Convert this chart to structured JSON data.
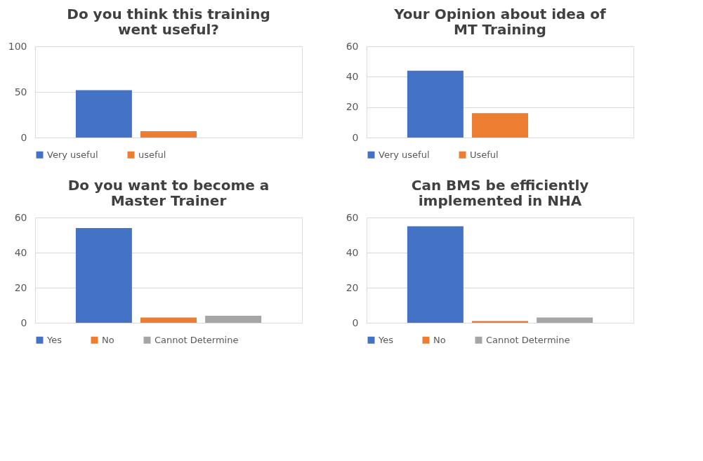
{
  "chart_data": [
    {
      "type": "bar",
      "title": "Do you think this training went useful?",
      "categories": [
        null
      ],
      "series": [
        {
          "name": "Very useful",
          "color": "#4472c4",
          "values": [
            52
          ]
        },
        {
          "name": "useful",
          "color": "#ed7d31",
          "values": [
            7
          ]
        }
      ],
      "ylim": [
        0,
        100
      ],
      "yticks": [
        0,
        50,
        100
      ],
      "grid": "y",
      "legend": "bottom",
      "tick_labels": "y"
    },
    {
      "type": "bar",
      "title": "Your Opinion about idea of MT Training",
      "categories": [
        null
      ],
      "series": [
        {
          "name": "Very useful",
          "color": "#4472c4",
          "values": [
            44
          ]
        },
        {
          "name": "Useful",
          "color": "#ed7d31",
          "values": [
            16
          ]
        }
      ],
      "ylim": [
        0,
        60
      ],
      "yticks": [
        0,
        20,
        40,
        60
      ],
      "grid": "y",
      "legend": "bottom",
      "tick_labels": "y"
    },
    {
      "type": "bar",
      "title": "Do you want to become a Master Trainer",
      "categories": [
        null
      ],
      "series": [
        {
          "name": "Yes",
          "color": "#4472c4",
          "values": [
            54
          ]
        },
        {
          "name": "No",
          "color": "#ed7d31",
          "values": [
            3
          ]
        },
        {
          "name": "Cannot Determine",
          "color": "#a5a5a5",
          "values": [
            4
          ]
        }
      ],
      "ylim": [
        0,
        60
      ],
      "yticks": [
        0,
        20,
        40,
        60
      ],
      "grid": "y",
      "legend": "bottom",
      "tick_labels": "y"
    },
    {
      "type": "bar",
      "title": "Can BMS be efficiently implemented in NHA",
      "categories": [
        null
      ],
      "series": [
        {
          "name": "Yes",
          "color": "#4472c4",
          "values": [
            55
          ]
        },
        {
          "name": "No",
          "color": "#ed7d31",
          "values": [
            1
          ]
        },
        {
          "name": "Cannot Determine",
          "color": "#a5a5a5",
          "values": [
            3
          ]
        }
      ],
      "ylim": [
        0,
        60
      ],
      "yticks": [
        0,
        20,
        40,
        60
      ],
      "grid": "y",
      "legend": "bottom",
      "tick_labels": "y"
    }
  ]
}
